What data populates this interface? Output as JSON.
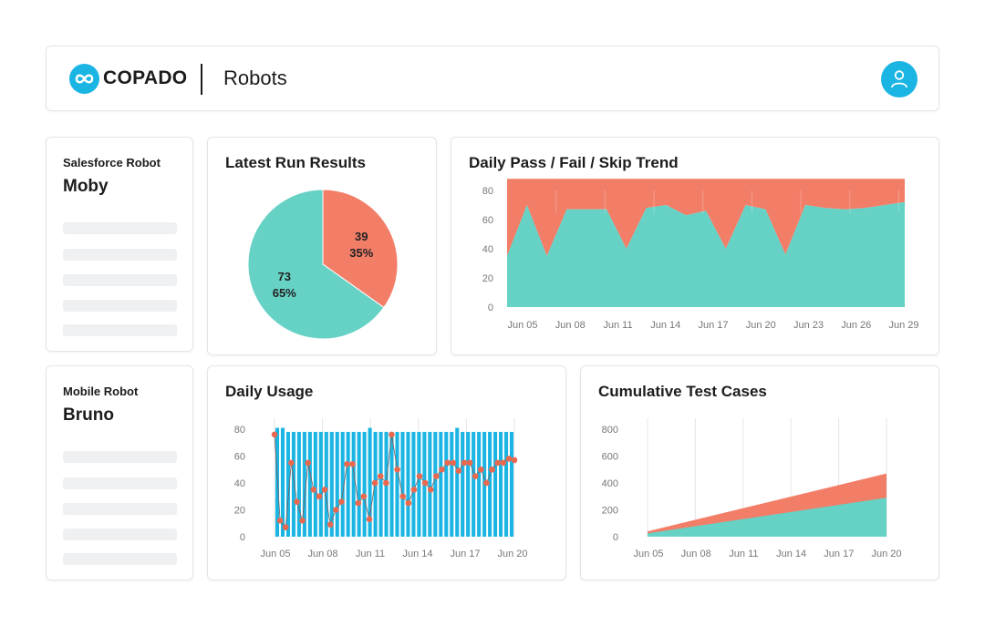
{
  "header": {
    "logo_text": "COPADO",
    "page_title": "Robots"
  },
  "robots": [
    {
      "type_label": "Salesforce Robot",
      "name": "Moby"
    },
    {
      "type_label": "Mobile Robot",
      "name": "Bruno"
    }
  ],
  "colors": {
    "accent": "#1bb5e4",
    "pass": "#66d1c5",
    "fail": "#f27e68",
    "bar": "#1bb5e4",
    "line_points": "#e8694f"
  },
  "chart_data": [
    {
      "id": "latest-run",
      "type": "pie",
      "title": "Latest Run Results",
      "slices": [
        {
          "value": 39,
          "percent_label": "35%"
        },
        {
          "value": 73,
          "percent_label": "65%"
        }
      ]
    },
    {
      "id": "trend",
      "type": "area",
      "title": "Daily Pass / Fail / Skip Trend",
      "x_tick_labels": [
        "Jun 05",
        "Jun 08",
        "Jun 11",
        "Jun 14",
        "Jun 17",
        "Jun 20",
        "Jun 23",
        "Jun 26",
        "Jun 29"
      ],
      "ylim": [
        0,
        80
      ],
      "y_ticks": [
        0,
        20,
        40,
        60,
        80
      ],
      "series": [
        {
          "values": [
            35,
            70,
            35,
            67,
            67,
            67,
            40,
            68,
            70,
            63,
            66,
            40,
            70,
            67,
            36,
            70,
            68,
            67,
            68,
            70,
            72
          ]
        },
        {
          "values": [
            53,
            18,
            53,
            21,
            21,
            21,
            48,
            20,
            18,
            25,
            22,
            48,
            18,
            21,
            52,
            18,
            20,
            21,
            20,
            18,
            16
          ]
        }
      ]
    },
    {
      "id": "daily-usage",
      "type": "bar",
      "title": "Daily Usage",
      "x_tick_labels": [
        "Jun 05",
        "Jun 08",
        "Jun 11",
        "Jun 14",
        "Jun 17",
        "Jun 20"
      ],
      "ylim": [
        0,
        80
      ],
      "y_ticks": [
        0,
        20,
        40,
        60,
        80
      ],
      "bars": [
        81,
        81,
        78,
        78,
        78,
        78,
        78,
        78,
        78,
        78,
        78,
        78,
        78,
        78,
        78,
        78,
        78,
        81,
        78,
        78,
        78,
        78,
        78,
        78,
        78,
        78,
        78,
        78,
        78,
        78,
        78,
        78,
        78,
        81,
        78,
        78,
        78,
        78,
        78,
        78,
        78,
        78,
        78,
        78
      ],
      "line": [
        76,
        12,
        7,
        55,
        26,
        12,
        55,
        35,
        30,
        35,
        9,
        20,
        26,
        54,
        54,
        25,
        30,
        13,
        40,
        45,
        40,
        76,
        50,
        30,
        25,
        35,
        45,
        40,
        35,
        45,
        50,
        55,
        55,
        49,
        55,
        55,
        45,
        50,
        40,
        50,
        55,
        55,
        58,
        57
      ]
    },
    {
      "id": "cumulative",
      "type": "area",
      "title": "Cumulative Test Cases",
      "x_tick_labels": [
        "Jun 05",
        "Jun 08",
        "Jun 11",
        "Jun 14",
        "Jun 17",
        "Jun 20"
      ],
      "ylim": [
        0,
        800
      ],
      "y_ticks": [
        0,
        200,
        400,
        600,
        800
      ],
      "series": [
        {
          "values": [
            40,
            470
          ]
        },
        {
          "values": [
            25,
            290
          ]
        }
      ]
    }
  ]
}
